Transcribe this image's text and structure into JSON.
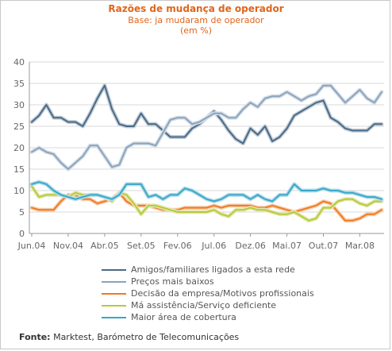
{
  "chart_data": {
    "type": "line",
    "title": "Razões de mudança de operador",
    "subtitle": "Base: ja mudaram de operador",
    "subtitle2": "(em %)",
    "ylim": [
      0,
      40
    ],
    "yticks": [
      0,
      5,
      10,
      15,
      20,
      25,
      30,
      35,
      40
    ],
    "grid": true,
    "legend_position": "bottom",
    "x_tick_labels": [
      "Jun.04",
      "Nov.04",
      "Abr.05",
      "Set.05",
      "Fev.06",
      "Jul.06",
      "Dez.06",
      "Mai.07",
      "Out.07",
      "Mar.08"
    ],
    "x_tick_index": [
      0,
      5,
      10,
      15,
      20,
      25,
      30,
      35,
      40,
      45
    ],
    "series": [
      {
        "name": "Amigos/familiares ligados a esta rede",
        "color": "#4a6a86",
        "glow": "#c2cdd8",
        "values": [
          26,
          27.5,
          30,
          27,
          27,
          26,
          26,
          25,
          28,
          31.5,
          34.5,
          29,
          25.5,
          25,
          25,
          28,
          25.5,
          25.5,
          24,
          22.5,
          22.5,
          22.5,
          24.5,
          25.5,
          27,
          28.5,
          26.5,
          24,
          22,
          21,
          24.5,
          23,
          25,
          21.5,
          22.5,
          24.5,
          27.5,
          28.5,
          29.5,
          30.5,
          31,
          27,
          26,
          24.5,
          24,
          24,
          24,
          25.5,
          25.5
        ]
      },
      {
        "name": "Preços mais baixos",
        "color": "#8aa3bd",
        "glow": "#d6dee8",
        "values": [
          19,
          20,
          19,
          18.5,
          16.5,
          15,
          16.5,
          18,
          20.5,
          20.5,
          18,
          15.5,
          16,
          20,
          21,
          21,
          21,
          20.5,
          23.5,
          26.5,
          27,
          27,
          25.5,
          26,
          27,
          28,
          28,
          27,
          27,
          29,
          30.5,
          29.5,
          31.5,
          32,
          32,
          33,
          32,
          31,
          32,
          32.5,
          34.5,
          34.5,
          32.5,
          30.5,
          32,
          33.5,
          31.5,
          30.5,
          33
        ]
      },
      {
        "name": "Decisão da empresa/Motivos profissionais",
        "color": "#f07a23",
        "glow": "#f6cfae",
        "values": [
          6,
          5.5,
          5.5,
          5.5,
          7.5,
          9,
          9,
          8,
          8,
          7,
          7.5,
          8,
          9.5,
          7.5,
          6.5,
          6.5,
          6.5,
          6,
          5.5,
          5.5,
          5.5,
          6,
          6,
          6,
          6,
          6.5,
          6,
          6.5,
          6.5,
          6.5,
          6.5,
          6,
          6,
          6.5,
          6,
          5.5,
          5,
          5.5,
          6,
          6.5,
          7.5,
          7,
          5,
          3,
          3,
          3.5,
          4.5,
          4.5,
          5.5
        ]
      },
      {
        "name": "Má assistência/Serviço deficiente",
        "color": "#b9c93a",
        "glow": "#e2e9b4",
        "values": [
          11,
          8.5,
          9,
          9,
          9,
          8.5,
          9.5,
          9,
          9,
          9,
          8.5,
          7.5,
          9.5,
          9,
          7,
          4.5,
          6.5,
          6.5,
          6,
          5.5,
          5,
          5,
          5,
          5,
          5,
          5.5,
          4.5,
          4,
          5.5,
          5.5,
          6,
          5.5,
          5.5,
          5,
          4.5,
          4.5,
          5,
          4,
          3,
          3.5,
          6,
          6,
          7.5,
          8,
          8,
          7,
          6.5,
          7.5,
          7.5
        ]
      },
      {
        "name": "Maior área de cobertura",
        "color": "#37a8c8",
        "glow": "#b6dcea",
        "values": [
          11.5,
          12,
          11.5,
          10,
          9,
          8.5,
          8,
          8.5,
          9,
          9,
          8.5,
          8,
          9,
          11.5,
          11.5,
          11.5,
          8.5,
          9,
          8,
          9,
          9,
          10.5,
          10,
          9,
          8,
          7.5,
          8,
          9,
          9,
          9,
          8,
          9,
          8,
          7.5,
          9,
          9,
          11.5,
          10,
          10,
          10,
          10.5,
          10,
          10,
          9.5,
          9.5,
          9,
          8.5,
          8.5,
          8
        ]
      }
    ]
  },
  "source": {
    "label": "Fonte:",
    "text": "Marktest, Barómetro de Telecomunicações"
  }
}
